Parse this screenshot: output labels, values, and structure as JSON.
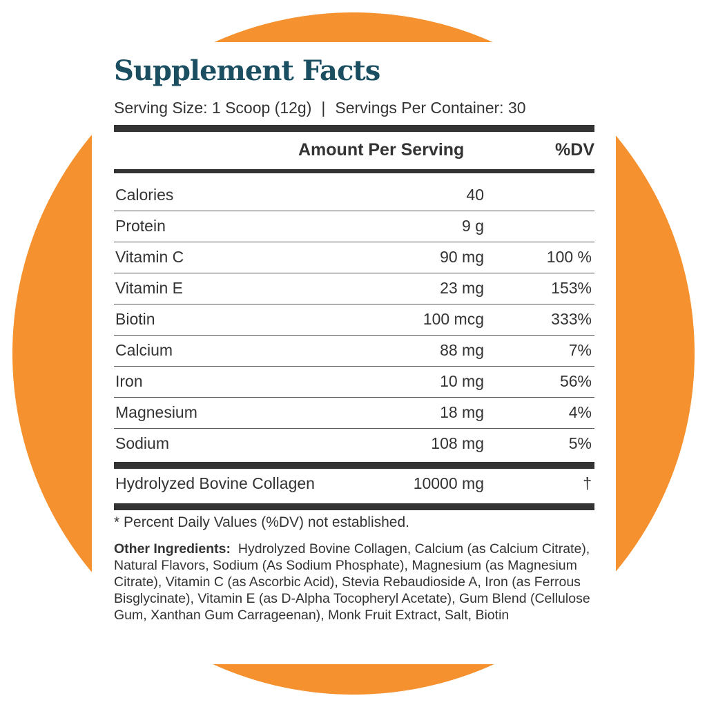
{
  "title": "Supplement Facts",
  "serving_size": "Serving Size: 1 Scoop (12g)",
  "separator": "|",
  "servings_per_container": "Servings Per Container: 30",
  "headers": {
    "amount": "Amount Per Serving",
    "dv": "%DV"
  },
  "nutrients": [
    {
      "name": "Calories",
      "amount": "40",
      "dv": ""
    },
    {
      "name": "Protein",
      "amount": "9 g",
      "dv": ""
    },
    {
      "name": "Vitamin C",
      "amount": "90 mg",
      "dv": "100 %"
    },
    {
      "name": "Vitamin E",
      "amount": "23 mg",
      "dv": "153%"
    },
    {
      "name": "Biotin",
      "amount": "100 mcg",
      "dv": "333%"
    },
    {
      "name": "Calcium",
      "amount": "88 mg",
      "dv": "7%"
    },
    {
      "name": "Iron",
      "amount": "10 mg",
      "dv": "56%"
    },
    {
      "name": "Magnesium",
      "amount": "18 mg",
      "dv": "4%"
    },
    {
      "name": "Sodium",
      "amount": "108 mg",
      "dv": "5%"
    }
  ],
  "collagen": {
    "name": "Hydrolyzed Bovine Collagen",
    "amount": "10000 mg",
    "dv": "†"
  },
  "footnote": "* Percent Daily Values (%DV) not established.",
  "other_ingredients": {
    "label": "Other Ingredients:",
    "text": "Hydrolyzed Bovine Collagen, Calcium (as Calcium Citrate), Natural Flavors, Sodium (As Sodium Phosphate), Magnesium (as Magnesium Citrate), Vitamin C (as Ascorbic Acid), Stevia Rebaudioside A, Iron (as Ferrous Bisglycinate), Vitamin E (as D-Alpha Tocopheryl Acetate), Gum Blend (Cellulose Gum, Xanthan Gum Carrageenan), Monk Fruit Extract, Salt, Biotin"
  },
  "colors": {
    "background_circle": "#F5912F",
    "title": "#1A4E60",
    "text": "#333333"
  }
}
